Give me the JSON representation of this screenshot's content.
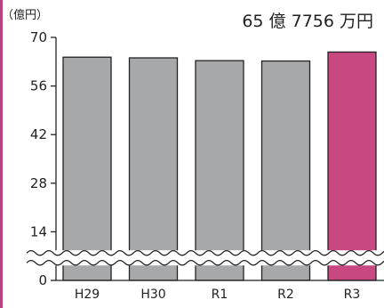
{
  "chart_data": {
    "type": "bar",
    "unit_label": "（億円）",
    "highlight_text": "65 億 7756 万円",
    "categories": [
      "H29",
      "H30",
      "R1",
      "R2",
      "R3"
    ],
    "values": [
      64.3,
      64.1,
      63.3,
      63.2,
      65.78
    ],
    "highlight_index": 4,
    "y_ticks": [
      0,
      14,
      28,
      42,
      56,
      70
    ],
    "ylim": [
      0,
      70
    ],
    "axis_break_between": [
      0,
      14
    ],
    "colors": {
      "bar": "#a7a8aa",
      "highlight": "#c84882",
      "axis": "#222222",
      "frame": "#b5437f"
    }
  }
}
